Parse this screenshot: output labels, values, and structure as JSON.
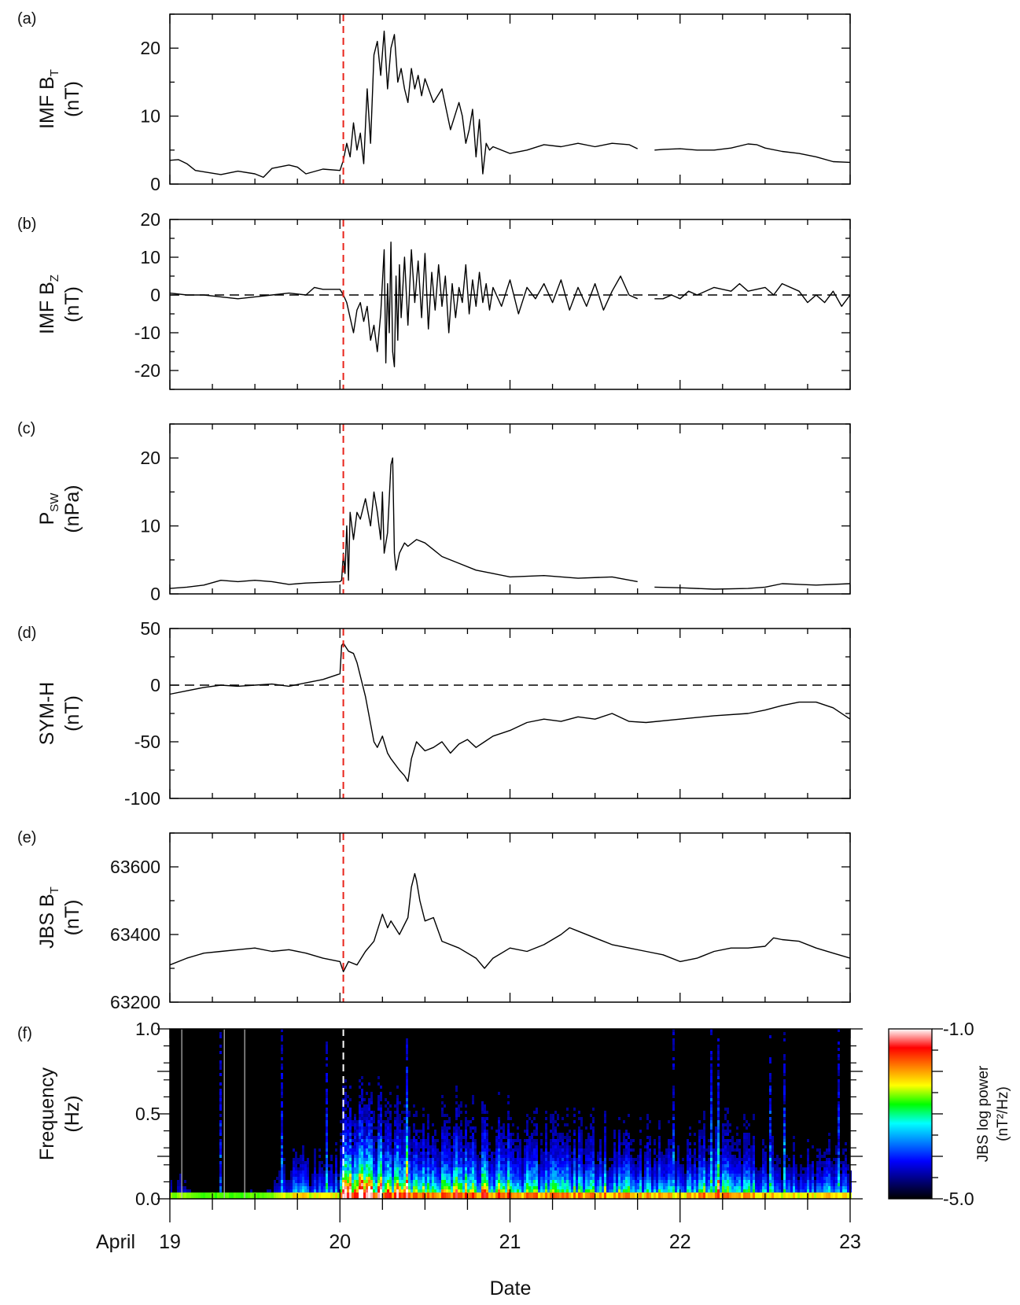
{
  "figure": {
    "x_axis": {
      "label": "Date",
      "prefix": "April",
      "ticks": [
        "19",
        "20",
        "21",
        "22",
        "23"
      ],
      "range": [
        19,
        23
      ],
      "minor_step": 0.25
    },
    "event_time": 20.02,
    "colorbar": {
      "label_line1": "JBS log power",
      "label_line2": "(nT²/Hz)",
      "ticks": [
        "-1.0",
        "-5.0"
      ],
      "range": [
        -5.0,
        -1.0
      ]
    }
  },
  "chart_data": [
    {
      "type": "line",
      "id": "a",
      "panel_label": "(a)",
      "ylabel_line1": "IMF B",
      "ylabel_sub": "T",
      "ylabel_line2": "(nT)",
      "ylim": [
        0,
        25
      ],
      "yticks": [
        0,
        10,
        20
      ],
      "zero_line": false,
      "series": [
        {
          "x": [
            19.0,
            19.05,
            19.1,
            19.15,
            19.2,
            19.3,
            19.4,
            19.5,
            19.55,
            19.6,
            19.7,
            19.75,
            19.8,
            19.9,
            20.0,
            20.02,
            20.04,
            20.06,
            20.08,
            20.1,
            20.12,
            20.14,
            20.16,
            20.18,
            20.2,
            20.22,
            20.24,
            20.26,
            20.28,
            20.3,
            20.32,
            20.34,
            20.36,
            20.38,
            20.4,
            20.42,
            20.44,
            20.46,
            20.48,
            20.5,
            20.55,
            20.6,
            20.65,
            20.7,
            20.72,
            20.74,
            20.76,
            20.78,
            20.8,
            20.82,
            20.84,
            20.86,
            20.88,
            20.9,
            21.0,
            21.1,
            21.2,
            21.3,
            21.4,
            21.5,
            21.6,
            21.7,
            21.75,
            null,
            21.85,
            21.9,
            22.0,
            22.1,
            22.2,
            22.3,
            22.4,
            22.45,
            22.5,
            22.6,
            22.7,
            22.8,
            22.9,
            23.0
          ],
          "y": [
            3.5,
            3.6,
            3.0,
            2.0,
            1.8,
            1.4,
            1.9,
            1.5,
            1.0,
            2.3,
            2.8,
            2.5,
            1.5,
            2.2,
            2.0,
            3.5,
            6.0,
            4.0,
            9.0,
            5.0,
            7.5,
            3.0,
            14.0,
            6.0,
            19.0,
            21.0,
            16.0,
            22.5,
            14.0,
            20.0,
            22.0,
            15.0,
            17.0,
            14.0,
            12.0,
            17.0,
            14.0,
            16.0,
            13.0,
            15.5,
            12.0,
            14.0,
            8.0,
            12.0,
            10.0,
            6.0,
            8.0,
            11.0,
            4.0,
            9.5,
            1.5,
            6.0,
            5.0,
            5.5,
            4.5,
            5.0,
            5.8,
            5.5,
            6.0,
            5.5,
            6.0,
            5.8,
            5.2,
            null,
            5.0,
            5.1,
            5.2,
            5.0,
            5.0,
            5.3,
            5.9,
            5.8,
            5.3,
            4.8,
            4.5,
            4.0,
            3.3,
            3.2
          ]
        }
      ]
    },
    {
      "type": "line",
      "id": "b",
      "panel_label": "(b)",
      "ylabel_line1": "IMF B",
      "ylabel_sub": "Z",
      "ylabel_line2": "(nT)",
      "ylim": [
        -25,
        20
      ],
      "yticks": [
        -20,
        -10,
        0,
        10,
        20
      ],
      "zero_line": true,
      "series": [
        {
          "x": [
            19.0,
            19.1,
            19.2,
            19.3,
            19.4,
            19.5,
            19.6,
            19.7,
            19.8,
            19.85,
            19.9,
            20.0,
            20.02,
            20.04,
            20.06,
            20.08,
            20.1,
            20.12,
            20.14,
            20.16,
            20.18,
            20.2,
            20.22,
            20.24,
            20.26,
            20.27,
            20.28,
            20.29,
            20.3,
            20.31,
            20.32,
            20.33,
            20.34,
            20.35,
            20.36,
            20.38,
            20.4,
            20.42,
            20.44,
            20.46,
            20.48,
            20.5,
            20.52,
            20.54,
            20.56,
            20.58,
            20.6,
            20.62,
            20.64,
            20.66,
            20.68,
            20.7,
            20.72,
            20.74,
            20.76,
            20.78,
            20.8,
            20.82,
            20.84,
            20.86,
            20.88,
            20.9,
            20.95,
            21.0,
            21.05,
            21.1,
            21.15,
            21.2,
            21.25,
            21.3,
            21.35,
            21.4,
            21.45,
            21.5,
            21.55,
            21.6,
            21.65,
            21.7,
            21.75,
            null,
            21.85,
            21.9,
            21.95,
            22.0,
            22.05,
            22.1,
            22.2,
            22.3,
            22.35,
            22.4,
            22.5,
            22.55,
            22.6,
            22.7,
            22.75,
            22.8,
            22.85,
            22.9,
            22.95,
            23.0
          ],
          "y": [
            0.5,
            0,
            0,
            -0.5,
            -1,
            -0.5,
            0,
            0.5,
            0,
            2,
            1.5,
            1.5,
            0,
            -2,
            -6,
            -10,
            -4,
            -2,
            -7,
            -3,
            -12,
            -8,
            -15,
            -5,
            12,
            -18,
            3,
            -10,
            14,
            -15,
            -19,
            5,
            -12,
            8,
            -6,
            10,
            -8,
            12,
            -2,
            9,
            -6,
            11,
            -9,
            6,
            -4,
            8,
            -3,
            5,
            -10,
            3,
            -6,
            2,
            -2,
            8,
            -5,
            4,
            -3,
            6,
            -2,
            3,
            -4,
            2,
            -3,
            4,
            -5,
            2,
            -1,
            3,
            -2,
            4,
            -4,
            2,
            -3,
            3,
            -4,
            1,
            5,
            0,
            -1,
            null,
            -1,
            -1,
            0,
            -1,
            1,
            0,
            2,
            1,
            3,
            1,
            2,
            0,
            3,
            1,
            -2,
            0,
            -2,
            1,
            -3,
            0
          ]
        }
      ]
    },
    {
      "type": "line",
      "id": "c",
      "panel_label": "(c)",
      "ylabel_line1": "P",
      "ylabel_sub": "SW",
      "ylabel_line2": "(nPa)",
      "ylim": [
        0,
        25
      ],
      "yticks": [
        0,
        10,
        20
      ],
      "zero_line": false,
      "series": [
        {
          "x": [
            19.0,
            19.1,
            19.2,
            19.3,
            19.4,
            19.5,
            19.6,
            19.7,
            19.8,
            19.9,
            20.0,
            20.01,
            20.02,
            20.03,
            20.04,
            20.05,
            20.06,
            20.08,
            20.1,
            20.12,
            20.15,
            20.18,
            20.2,
            20.22,
            20.24,
            20.25,
            20.26,
            20.28,
            20.3,
            20.31,
            20.32,
            20.33,
            20.35,
            20.38,
            20.4,
            20.45,
            20.5,
            20.55,
            20.6,
            20.7,
            20.8,
            20.9,
            21.0,
            21.2,
            21.4,
            21.6,
            21.75,
            null,
            21.85,
            22.0,
            22.2,
            22.4,
            22.5,
            22.6,
            22.8,
            23.0
          ],
          "y": [
            0.8,
            1.0,
            1.3,
            2.0,
            1.8,
            2.0,
            1.8,
            1.4,
            1.6,
            1.7,
            1.8,
            2.0,
            6.0,
            3.0,
            10.0,
            2.0,
            12.0,
            8.0,
            12.0,
            11.0,
            14.0,
            10.0,
            15.0,
            12.0,
            8.0,
            15.0,
            6.0,
            9.0,
            19.0,
            20.0,
            6.0,
            3.5,
            6.0,
            7.5,
            7.0,
            8.0,
            7.5,
            6.5,
            5.5,
            4.5,
            3.5,
            3.0,
            2.5,
            2.7,
            2.3,
            2.5,
            1.8,
            null,
            1.0,
            0.9,
            0.7,
            0.8,
            1.0,
            1.5,
            1.3,
            1.5
          ]
        }
      ]
    },
    {
      "type": "line",
      "id": "d",
      "panel_label": "(d)",
      "ylabel_line1": "SYM-H",
      "ylabel_sub": "",
      "ylabel_line2": "(nT)",
      "ylim": [
        -100,
        50
      ],
      "yticks": [
        -100,
        -50,
        0,
        50
      ],
      "zero_line": true,
      "series": [
        {
          "x": [
            19.0,
            19.1,
            19.2,
            19.3,
            19.4,
            19.5,
            19.6,
            19.7,
            19.8,
            19.9,
            20.0,
            20.01,
            20.02,
            20.05,
            20.08,
            20.1,
            20.15,
            20.2,
            20.22,
            20.25,
            20.28,
            20.3,
            20.35,
            20.38,
            20.4,
            20.42,
            20.45,
            20.5,
            20.55,
            20.6,
            20.65,
            20.7,
            20.75,
            20.8,
            20.85,
            20.9,
            21.0,
            21.1,
            21.2,
            21.3,
            21.4,
            21.5,
            21.6,
            21.7,
            21.8,
            22.0,
            22.2,
            22.4,
            22.5,
            22.6,
            22.7,
            22.8,
            22.9,
            23.0
          ],
          "y": [
            -8,
            -5,
            -2,
            0,
            -1,
            0,
            1,
            -1,
            2,
            5,
            10,
            35,
            37,
            30,
            28,
            20,
            -10,
            -50,
            -55,
            -45,
            -60,
            -65,
            -75,
            -80,
            -85,
            -65,
            -50,
            -58,
            -55,
            -50,
            -60,
            -52,
            -48,
            -55,
            -50,
            -45,
            -40,
            -33,
            -30,
            -32,
            -28,
            -30,
            -25,
            -32,
            -33,
            -30,
            -27,
            -25,
            -22,
            -18,
            -15,
            -15,
            -20,
            -30
          ]
        }
      ]
    },
    {
      "type": "line",
      "id": "e",
      "panel_label": "(e)",
      "ylabel_line1": "JBS B",
      "ylabel_sub": "T",
      "ylabel_line2": "(nT)",
      "ylim": [
        63200,
        63700
      ],
      "yticks": [
        63200,
        63400,
        63600
      ],
      "zero_line": false,
      "series": [
        {
          "x": [
            19.0,
            19.1,
            19.2,
            19.3,
            19.4,
            19.5,
            19.6,
            19.7,
            19.8,
            19.9,
            20.0,
            20.02,
            20.05,
            20.1,
            20.15,
            20.2,
            20.25,
            20.28,
            20.3,
            20.35,
            20.4,
            20.42,
            20.44,
            20.45,
            20.47,
            20.5,
            20.55,
            20.6,
            20.7,
            20.8,
            20.85,
            20.9,
            21.0,
            21.1,
            21.2,
            21.3,
            21.35,
            21.4,
            21.5,
            21.6,
            21.7,
            21.8,
            21.9,
            22.0,
            22.1,
            22.2,
            22.3,
            22.4,
            22.5,
            22.55,
            22.6,
            22.7,
            22.8,
            22.9,
            23.0
          ],
          "y": [
            63310,
            63330,
            63345,
            63350,
            63355,
            63360,
            63350,
            63355,
            63345,
            63330,
            63320,
            63290,
            63320,
            63310,
            63350,
            63380,
            63460,
            63420,
            63440,
            63400,
            63450,
            63540,
            63580,
            63560,
            63500,
            63440,
            63450,
            63380,
            63360,
            63330,
            63300,
            63330,
            63360,
            63350,
            63370,
            63400,
            63420,
            63410,
            63390,
            63370,
            63360,
            63350,
            63340,
            63320,
            63330,
            63350,
            63360,
            63360,
            63365,
            63390,
            63385,
            63380,
            63360,
            63345,
            63330
          ]
        }
      ]
    },
    {
      "type": "heatmap",
      "id": "f",
      "panel_label": "(f)",
      "ylabel_line1": "Frequency",
      "ylabel_sub": "",
      "ylabel_line2": "(Hz)",
      "ylim": [
        0.0,
        1.0
      ],
      "yticks": [
        0.0,
        0.5,
        1.0
      ],
      "ytick_labels": [
        "0.0",
        "0.5",
        "1.0"
      ],
      "value_range": [
        -5.0,
        -1.0
      ],
      "colormap": [
        "#000000",
        "#00007f",
        "#0000ff",
        "#0080ff",
        "#00ffff",
        "#00ff00",
        "#ffff00",
        "#ff8000",
        "#ff0000",
        "#ffffff"
      ],
      "activity_x": [
        19.0,
        19.2,
        19.4,
        19.6,
        19.75,
        19.9,
        20.0,
        20.02,
        20.1,
        20.2,
        20.3,
        20.4,
        20.5,
        20.7,
        20.9,
        21.0,
        21.2,
        21.4,
        21.6,
        21.8,
        22.0,
        22.15,
        22.25,
        22.4,
        22.5,
        22.6,
        22.8,
        22.9,
        23.0
      ],
      "activity_level": [
        0.15,
        0.08,
        0.08,
        0.1,
        0.3,
        0.25,
        0.3,
        0.9,
        0.85,
        0.75,
        0.7,
        0.7,
        0.65,
        0.6,
        0.55,
        0.5,
        0.45,
        0.45,
        0.45,
        0.4,
        0.35,
        0.45,
        0.55,
        0.45,
        0.4,
        0.3,
        0.3,
        0.3,
        0.3
      ]
    }
  ]
}
